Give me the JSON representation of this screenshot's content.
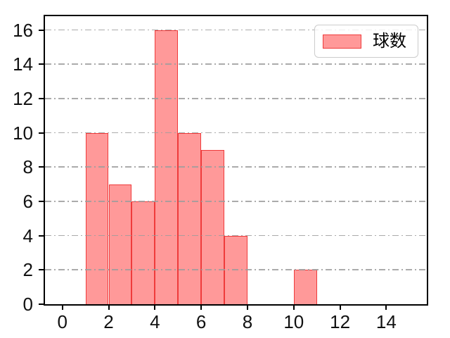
{
  "chart_data": {
    "type": "bar",
    "subtype": "histogram",
    "title": "",
    "xlabel": "",
    "ylabel": "",
    "series_name": "球数",
    "bars": [
      {
        "x_start": 1,
        "x_end": 2,
        "count": 10
      },
      {
        "x_start": 2,
        "x_end": 3,
        "count": 7
      },
      {
        "x_start": 3,
        "x_end": 4,
        "count": 6
      },
      {
        "x_start": 4,
        "x_end": 5,
        "count": 16
      },
      {
        "x_start": 5,
        "x_end": 6,
        "count": 10
      },
      {
        "x_start": 6,
        "x_end": 7,
        "count": 9
      },
      {
        "x_start": 7,
        "x_end": 8,
        "count": 4
      },
      {
        "x_start": 10,
        "x_end": 11,
        "count": 2
      }
    ],
    "xlim": [
      -0.75,
      15.75
    ],
    "ylim": [
      0,
      16.8
    ],
    "x_ticks": [
      "0",
      "2",
      "4",
      "6",
      "8",
      "10",
      "12",
      "14"
    ],
    "x_tick_values": [
      0,
      2,
      4,
      6,
      8,
      10,
      12,
      14
    ],
    "y_ticks": [
      "0",
      "2",
      "4",
      "6",
      "8",
      "10",
      "12",
      "14",
      "16"
    ],
    "y_tick_values": [
      0,
      2,
      4,
      6,
      8,
      10,
      12,
      14,
      16
    ],
    "grid": {
      "axis": "y",
      "linestyle": "dash-dot",
      "above_bars": true
    },
    "legend": {
      "label": "球数",
      "position": "upper-right"
    },
    "colors": {
      "bar_fill": "#ff9999",
      "bar_edge": "#ef3b3b",
      "grid": "#9c9c9c",
      "spine": "#000000",
      "tick_label": "#111111",
      "legend_border": "#cccccc"
    }
  }
}
